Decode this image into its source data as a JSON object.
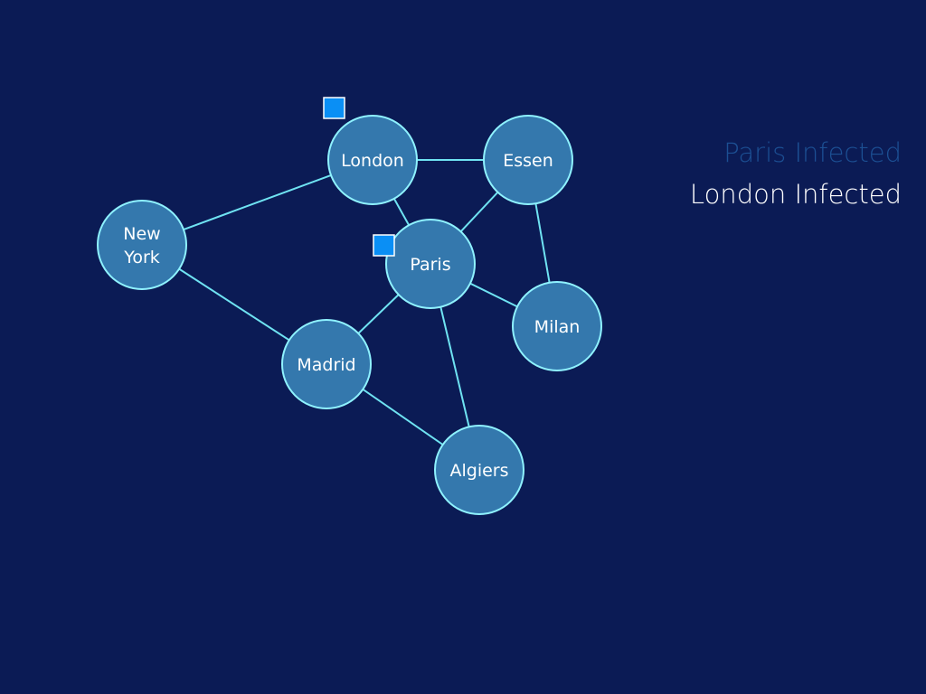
{
  "colors": {
    "background": "#0b1b55",
    "city_fill": "#3478ad",
    "city_outline": "#8ff2ff",
    "connection": "#6fe3f2",
    "infection_cube": "#0a8ff5",
    "past_event_text": "#1c4f93",
    "current_event_text": "#ffffff"
  },
  "cities": [
    {
      "id": "london",
      "label": "London",
      "infection_cubes": 1
    },
    {
      "id": "essen",
      "label": "Essen",
      "infection_cubes": 0
    },
    {
      "id": "new-york",
      "label": "New\nYork",
      "infection_cubes": 0
    },
    {
      "id": "paris",
      "label": "Paris",
      "infection_cubes": 1
    },
    {
      "id": "milan",
      "label": "Milan",
      "infection_cubes": 0
    },
    {
      "id": "madrid",
      "label": "Madrid",
      "infection_cubes": 0
    },
    {
      "id": "algiers",
      "label": "Algiers",
      "infection_cubes": 0
    }
  ],
  "connections": [
    [
      "london",
      "essen"
    ],
    [
      "london",
      "new-york"
    ],
    [
      "london",
      "paris"
    ],
    [
      "essen",
      "paris"
    ],
    [
      "essen",
      "milan"
    ],
    [
      "new-york",
      "madrid"
    ],
    [
      "paris",
      "madrid"
    ],
    [
      "paris",
      "milan"
    ],
    [
      "paris",
      "algiers"
    ],
    [
      "madrid",
      "algiers"
    ]
  ],
  "events": [
    {
      "text": "Paris Infected",
      "state": "past"
    },
    {
      "text": "London Infected",
      "state": "current"
    }
  ]
}
